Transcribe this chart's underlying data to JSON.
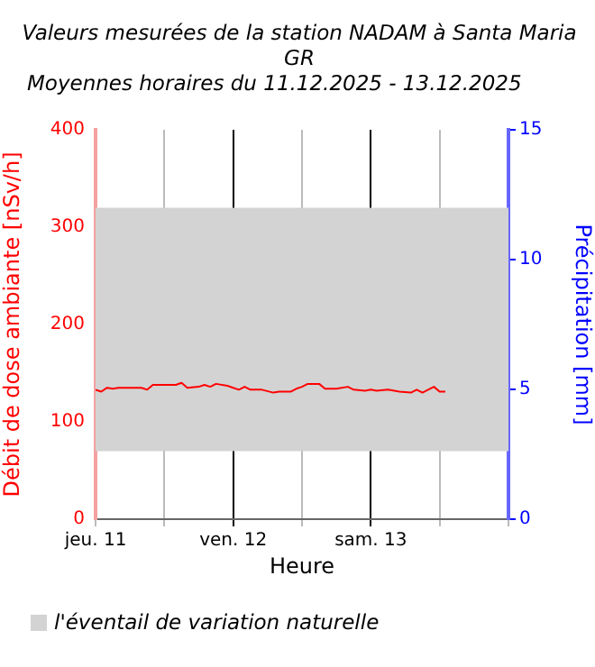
{
  "chart_data": {
    "type": "line",
    "title": "Valeurs mesurées de la station NADAM à Santa Maria GR",
    "subtitle": "Moyennes horaires du 11.12.2025 - 13.12.2025",
    "xlabel": "Heure",
    "ylabel": "Débit de dose ambiante [nSv/h]",
    "y2label": "Précipitation [mm]",
    "x": [
      "2025-12-11T00:00",
      "2025-12-11T01:00",
      "2025-12-11T02:00",
      "2025-12-11T03:00",
      "2025-12-11T04:00",
      "2025-12-11T08:00",
      "2025-12-11T09:00",
      "2025-12-11T10:00",
      "2025-12-11T14:00",
      "2025-12-11T15:00",
      "2025-12-11T16:00",
      "2025-12-11T18:00",
      "2025-12-11T19:00",
      "2025-12-11T20:00",
      "2025-12-11T21:00",
      "2025-12-11T23:00",
      "2025-12-12T00:00",
      "2025-12-12T01:00",
      "2025-12-12T02:00",
      "2025-12-12T03:00",
      "2025-12-12T05:00",
      "2025-12-12T07:00",
      "2025-12-12T08:00",
      "2025-12-12T10:00",
      "2025-12-12T11:00",
      "2025-12-12T12:00",
      "2025-12-12T13:00",
      "2025-12-12T15:00",
      "2025-12-12T16:00",
      "2025-12-12T18:00",
      "2025-12-12T20:00",
      "2025-12-12T21:00",
      "2025-12-12T23:00",
      "2025-12-13T00:00",
      "2025-12-13T01:00",
      "2025-12-13T03:00",
      "2025-12-13T05:00",
      "2025-12-13T07:00",
      "2025-12-13T08:00",
      "2025-12-13T09:00",
      "2025-12-13T11:00",
      "2025-12-13T12:00",
      "2025-12-13T13:00"
    ],
    "series": [
      {
        "color": "#ff0000",
        "values": [
          133,
          131,
          135,
          134,
          135,
          135,
          133,
          138,
          138,
          140,
          135,
          136,
          138,
          136,
          139,
          137,
          135,
          133,
          136,
          133,
          133,
          130,
          131,
          131,
          134,
          136,
          139,
          139,
          134,
          134,
          136,
          133,
          132,
          133,
          132,
          133,
          131,
          130,
          133,
          130,
          136,
          131,
          131
        ]
      }
    ],
    "xlim": [
      "2025-12-11",
      "2025-12-14"
    ],
    "xticks": [
      {
        "value": "2025-12-11",
        "label": "jeu. 11"
      },
      {
        "value": "2025-12-11T12:00",
        "label": null
      },
      {
        "value": "2025-12-12",
        "label": "ven. 12"
      },
      {
        "value": "2025-12-12T12:00",
        "label": null
      },
      {
        "value": "2025-12-13",
        "label": "sam. 13"
      },
      {
        "value": "2025-12-13T12:00",
        "label": null
      },
      {
        "value": "2025-12-14",
        "label": null
      }
    ],
    "ylim": [
      0,
      400
    ],
    "yticks": [
      0,
      100,
      200,
      300,
      400
    ],
    "y2lim": [
      0,
      15
    ],
    "y2ticks": [
      0,
      5,
      10,
      15
    ],
    "bands": [
      {
        "axis": "y",
        "from": 70,
        "to": 320,
        "label": "l'éventail de variation naturelle",
        "color": "#d3d3d3"
      }
    ],
    "grid": "x",
    "legend": "bottom",
    "marker": "none",
    "line_style": "solid"
  }
}
